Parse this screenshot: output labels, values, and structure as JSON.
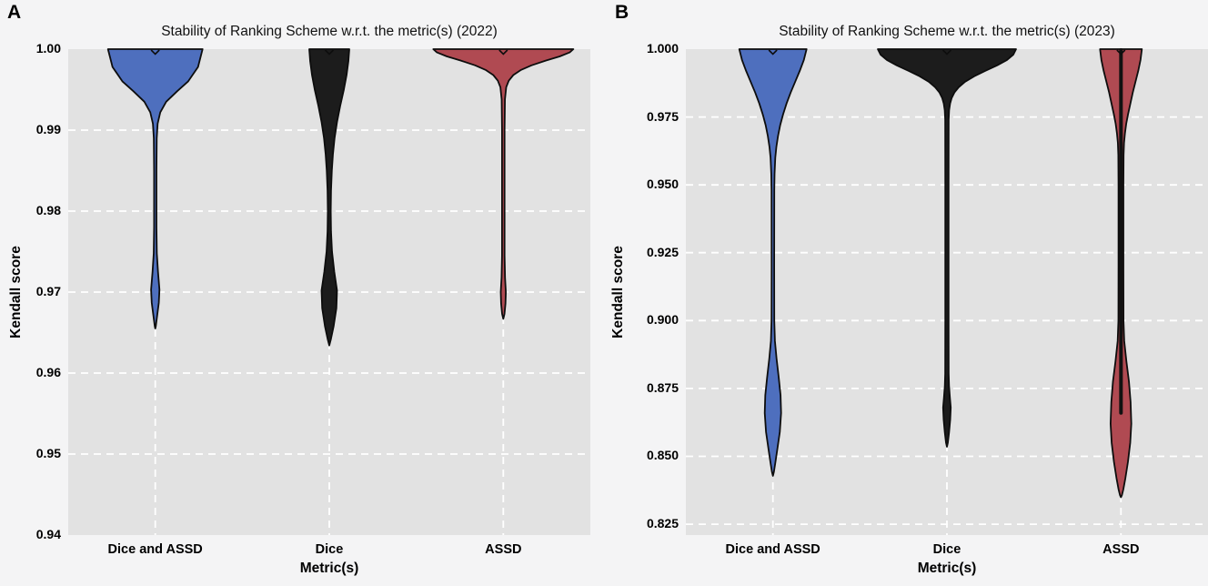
{
  "figure": {
    "background": "#f4f4f5",
    "plot_background": "#e2e2e2",
    "gridline_color": "#ffffff",
    "violin_outline_color": "#0d0d0d"
  },
  "chart_data": {
    "type": "violin",
    "layout_hint": "two side-by-side panels, grey plot background, white dashed grid, no legend",
    "panels": [
      {
        "panel_label": "A",
        "title": "Stability of Ranking Scheme w.r.t. the metric(s) (2022)",
        "xlabel": "Metric(s)",
        "ylabel": "Kendall score",
        "categories": [
          "Dice and ASSD",
          "Dice",
          "ASSD"
        ],
        "ylim": [
          0.94,
          1.0
        ],
        "yticks": [
          {
            "label": "1.00",
            "value": 1.0
          },
          {
            "label": "0.99",
            "value": 0.99
          },
          {
            "label": "0.98",
            "value": 0.98
          },
          {
            "label": "0.97",
            "value": 0.97
          },
          {
            "label": "0.96",
            "value": 0.96
          },
          {
            "label": "0.95",
            "value": 0.95
          },
          {
            "label": "0.94",
            "value": 0.94
          }
        ],
        "series": [
          {
            "category": "Dice and ASSD",
            "color": "#4e6fbe",
            "distribution": {
              "max": 1.0,
              "min": 0.9655,
              "primary_mode": 1.0,
              "secondary_mode": 0.97
            },
            "kde_profile": [
              [
                1.0,
                52
              ],
              [
                0.9978,
                47
              ],
              [
                0.996,
                36
              ],
              [
                0.9948,
                24
              ],
              [
                0.9935,
                12
              ],
              [
                0.9922,
                5.5
              ],
              [
                0.9908,
                2.6
              ],
              [
                0.989,
                1.6
              ],
              [
                0.985,
                1.3
              ],
              [
                0.978,
                1.3
              ],
              [
                0.9748,
                1.7
              ],
              [
                0.9725,
                3.0
              ],
              [
                0.9703,
                4.6
              ],
              [
                0.9687,
                3.9
              ],
              [
                0.9672,
                2.2
              ],
              [
                0.9658,
                0.6
              ],
              [
                0.9655,
                0
              ]
            ],
            "inner_stripe": null
          },
          {
            "category": "Dice",
            "color": "#1c1c1c",
            "distribution": {
              "max": 1.0,
              "min": 0.9634,
              "primary_mode": 1.0,
              "secondary_mode": 0.97
            },
            "kde_profile": [
              [
                1.0,
                22
              ],
              [
                0.9985,
                21
              ],
              [
                0.9968,
                19
              ],
              [
                0.995,
                16
              ],
              [
                0.993,
                12
              ],
              [
                0.991,
                8.5
              ],
              [
                0.989,
                5.8
              ],
              [
                0.987,
                4.0
              ],
              [
                0.985,
                2.8
              ],
              [
                0.9825,
                1.9
              ],
              [
                0.98,
                1.6
              ],
              [
                0.9775,
                1.9
              ],
              [
                0.975,
                3.0
              ],
              [
                0.9725,
                5.5
              ],
              [
                0.9702,
                8.5
              ],
              [
                0.968,
                7.8
              ],
              [
                0.9658,
                4.8
              ],
              [
                0.9642,
                1.8
              ],
              [
                0.9634,
                0
              ]
            ],
            "inner_stripe": null
          },
          {
            "category": "ASSD",
            "color": "#b04a52",
            "distribution": {
              "max": 1.0,
              "min": 0.9667,
              "primary_mode": 1.0,
              "secondary_mode": 0.9695
            },
            "kde_profile": [
              [
                1.0,
                77
              ],
              [
                0.9996,
                73
              ],
              [
                0.9991,
                62
              ],
              [
                0.9986,
                47
              ],
              [
                0.998,
                31
              ],
              [
                0.9974,
                19
              ],
              [
                0.9968,
                11
              ],
              [
                0.9961,
                6
              ],
              [
                0.9953,
                3.2
              ],
              [
                0.9938,
                1.8
              ],
              [
                0.99,
                1.4
              ],
              [
                0.9745,
                1.4
              ],
              [
                0.9718,
                1.9
              ],
              [
                0.97,
                2.8
              ],
              [
                0.9686,
                2.4
              ],
              [
                0.9673,
                1.3
              ],
              [
                0.9667,
                0
              ]
            ],
            "inner_stripe": null
          }
        ]
      },
      {
        "panel_label": "B",
        "title": "Stability of Ranking Scheme w.r.t. the metric(s) (2023)",
        "xlabel": "Metric(s)",
        "ylabel": "Kendall score",
        "categories": [
          "Dice and ASSD",
          "Dice",
          "ASSD"
        ],
        "ylim": [
          0.821,
          1.0
        ],
        "yticks": [
          {
            "label": "1.000",
            "value": 1.0
          },
          {
            "label": "0.975",
            "value": 0.975
          },
          {
            "label": "0.950",
            "value": 0.95
          },
          {
            "label": "0.925",
            "value": 0.925
          },
          {
            "label": "0.900",
            "value": 0.9
          },
          {
            "label": "0.875",
            "value": 0.875
          },
          {
            "label": "0.850",
            "value": 0.85
          },
          {
            "label": "0.825",
            "value": 0.825
          }
        ],
        "series": [
          {
            "category": "Dice and ASSD",
            "color": "#4e6fbe",
            "distribution": {
              "max": 1.0,
              "min": 0.8428,
              "primary_mode": 1.0,
              "secondary_mode": 0.866
            },
            "kde_profile": [
              [
                1.0,
                37
              ],
              [
                0.996,
                34
              ],
              [
                0.992,
                29.5
              ],
              [
                0.988,
                24.5
              ],
              [
                0.984,
                19.5
              ],
              [
                0.98,
                15
              ],
              [
                0.976,
                11.2
              ],
              [
                0.972,
                8
              ],
              [
                0.968,
                5.6
              ],
              [
                0.964,
                3.8
              ],
              [
                0.96,
                2.6
              ],
              [
                0.954,
                1.8
              ],
              [
                0.948,
                1.5
              ],
              [
                0.92,
                1.4
              ],
              [
                0.9,
                1.5
              ],
              [
                0.8925,
                2.2
              ],
              [
                0.886,
                4.0
              ],
              [
                0.879,
                6.4
              ],
              [
                0.8725,
                8.4
              ],
              [
                0.866,
                9.0
              ],
              [
                0.859,
                7.6
              ],
              [
                0.8525,
                4.8
              ],
              [
                0.8475,
                2.6
              ],
              [
                0.8443,
                1.1
              ],
              [
                0.8428,
                0
              ]
            ],
            "inner_stripe": null
          },
          {
            "category": "Dice",
            "color": "#1c1c1c",
            "distribution": {
              "max": 1.0,
              "min": 0.8535,
              "primary_mode": 1.0,
              "secondary_mode": 0.867
            },
            "kde_profile": [
              [
                1.0,
                76
              ],
              [
                0.998,
                73
              ],
              [
                0.996,
                66
              ],
              [
                0.994,
                55
              ],
              [
                0.992,
                42
              ],
              [
                0.99,
                30
              ],
              [
                0.988,
                20
              ],
              [
                0.986,
                13
              ],
              [
                0.984,
                8.2
              ],
              [
                0.982,
                5.2
              ],
              [
                0.98,
                3.5
              ],
              [
                0.9775,
                2.4
              ],
              [
                0.974,
                1.9
              ],
              [
                0.95,
                1.8
              ],
              [
                0.9,
                1.8
              ],
              [
                0.8805,
                1.9
              ],
              [
                0.876,
                2.3
              ],
              [
                0.8715,
                3.3
              ],
              [
                0.868,
                4.2
              ],
              [
                0.8635,
                3.6
              ],
              [
                0.859,
                2.4
              ],
              [
                0.855,
                1.0
              ],
              [
                0.8535,
                0
              ]
            ],
            "inner_stripe": null
          },
          {
            "category": "ASSD",
            "color": "#b04a52",
            "distribution": {
              "max": 1.0,
              "min": 0.8349,
              "primary_mode": 1.0,
              "secondary_mode": 0.862
            },
            "kde_profile": [
              [
                1.0,
                23
              ],
              [
                0.996,
                21.5
              ],
              [
                0.992,
                19
              ],
              [
                0.988,
                16
              ],
              [
                0.984,
                13
              ],
              [
                0.98,
                10.4
              ],
              [
                0.976,
                7.8
              ],
              [
                0.9725,
                5.8
              ],
              [
                0.969,
                4.4
              ],
              [
                0.9655,
                3.4
              ],
              [
                0.961,
                2.9
              ],
              [
                0.95,
                2.7
              ],
              [
                0.92,
                2.7
              ],
              [
                0.9,
                2.8
              ],
              [
                0.8925,
                3.6
              ],
              [
                0.885,
                6.0
              ],
              [
                0.8775,
                8.8
              ],
              [
                0.87,
                10.6
              ],
              [
                0.862,
                11.4
              ],
              [
                0.855,
                10.2
              ],
              [
                0.848,
                7.7
              ],
              [
                0.842,
                4.9
              ],
              [
                0.8378,
                2.6
              ],
              [
                0.8357,
                1.1
              ],
              [
                0.8349,
                0
              ]
            ],
            "inner_stripe": {
              "to_value": 0.866,
              "width": 4,
              "color": "#111111"
            }
          }
        ]
      }
    ]
  }
}
